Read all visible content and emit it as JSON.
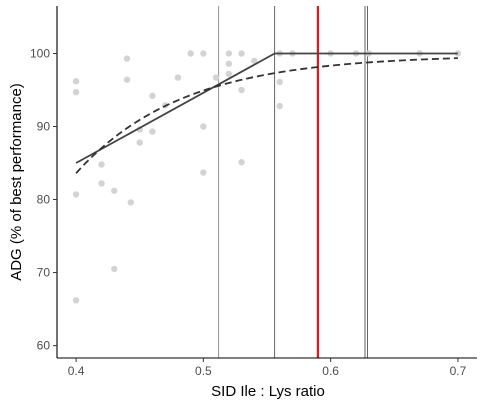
{
  "chart_data": {
    "type": "scatter",
    "xlabel": "SID Ile : Lys ratio",
    "ylabel": "ADG (% of best performance)",
    "xlim": [
      0.385,
      0.715
    ],
    "ylim": [
      58.3,
      106.5
    ],
    "x_ticks": [
      0.4,
      0.5,
      0.6,
      0.7
    ],
    "y_ticks": [
      60,
      70,
      80,
      90,
      100
    ],
    "grid": false,
    "points_color": "#d3d3d3",
    "points": [
      [
        0.4,
        96.2
      ],
      [
        0.4,
        94.7
      ],
      [
        0.4,
        80.7
      ],
      [
        0.4,
        66.2
      ],
      [
        0.42,
        84.8
      ],
      [
        0.42,
        82.2
      ],
      [
        0.43,
        81.2
      ],
      [
        0.43,
        70.5
      ],
      [
        0.44,
        99.3
      ],
      [
        0.44,
        96.4
      ],
      [
        0.443,
        79.6
      ],
      [
        0.45,
        89.6
      ],
      [
        0.45,
        87.8
      ],
      [
        0.46,
        94.2
      ],
      [
        0.46,
        89.3
      ],
      [
        0.47,
        92.9
      ],
      [
        0.48,
        96.7
      ],
      [
        0.49,
        100.0
      ],
      [
        0.5,
        100.0
      ],
      [
        0.5,
        90.0
      ],
      [
        0.5,
        83.7
      ],
      [
        0.51,
        96.7
      ],
      [
        0.52,
        100.0
      ],
      [
        0.52,
        98.6
      ],
      [
        0.52,
        97.2
      ],
      [
        0.53,
        100.0
      ],
      [
        0.53,
        95.0
      ],
      [
        0.53,
        85.1
      ],
      [
        0.54,
        99.0
      ],
      [
        0.56,
        100.0
      ],
      [
        0.56,
        96.1
      ],
      [
        0.56,
        92.8
      ],
      [
        0.57,
        100.0
      ],
      [
        0.6,
        100.0
      ],
      [
        0.62,
        100.0
      ],
      [
        0.63,
        100.0
      ],
      [
        0.67,
        100.0
      ],
      [
        0.7,
        100.0
      ]
    ],
    "broken_line": {
      "color": "#444444",
      "points": [
        [
          0.4,
          85.0
        ],
        [
          0.556,
          100.0
        ],
        [
          0.7,
          100.0
        ]
      ]
    },
    "curvilinear": {
      "color": "#333333",
      "style": "dashed",
      "start_x": 0.4,
      "end_x": 0.7,
      "a": 99.8,
      "b": 16.2,
      "c": 12.0
    },
    "vlines": [
      {
        "x": 0.512,
        "color": "#888888"
      },
      {
        "x": 0.556,
        "color": "#555555"
      },
      {
        "x": 0.59,
        "color": "#e31a1c"
      },
      {
        "x": 0.627,
        "color": "#555555"
      },
      {
        "x": 0.629,
        "color": "#555555"
      }
    ]
  }
}
